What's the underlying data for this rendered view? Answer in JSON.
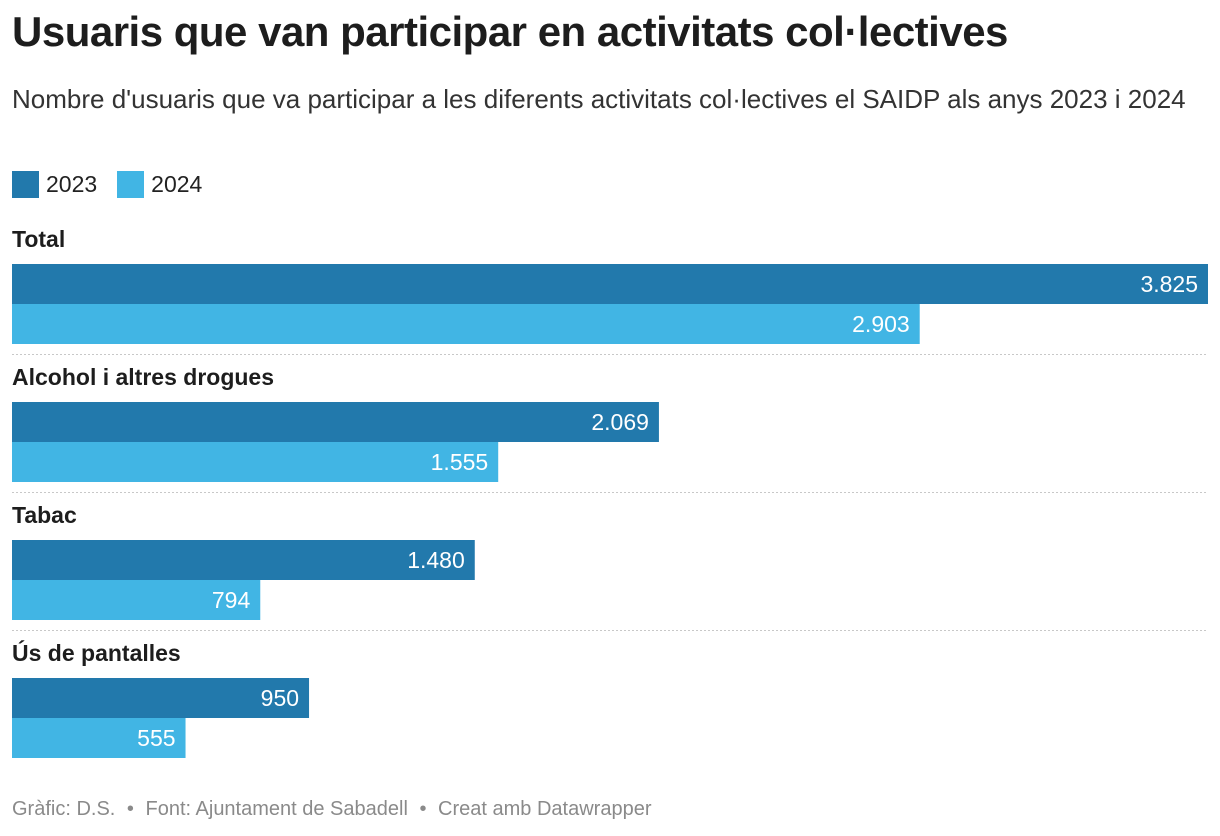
{
  "header": {
    "title": "Usuaris que van participar en activitats col·lectives",
    "subtitle": "Nombre d'usuaris que va participar a les diferents activitats col·lectives el SAIDP als anys 2023 i 2024"
  },
  "legend": {
    "items": [
      {
        "label": "2023",
        "color": "#2279ac"
      },
      {
        "label": "2024",
        "color": "#41b5e4"
      }
    ]
  },
  "chart_data": {
    "type": "bar",
    "orientation": "horizontal",
    "title": "Usuaris que van participar en activitats col·lectives",
    "categories": [
      "Total",
      "Alcohol i altres drogues",
      "Tabac",
      "Ús de pantalles"
    ],
    "series": [
      {
        "name": "2023",
        "color": "#2279ac",
        "values": [
          3825,
          2069,
          1480,
          950
        ],
        "labels": [
          "3.825",
          "2.069",
          "1.480",
          "950"
        ]
      },
      {
        "name": "2024",
        "color": "#41b5e4",
        "values": [
          2903,
          1555,
          794,
          555
        ],
        "labels": [
          "2.903",
          "1.555",
          "794",
          "555"
        ]
      }
    ],
    "xlim": [
      0,
      3825
    ],
    "grid": false,
    "legend_position": "top-left"
  },
  "footer": {
    "credit": "Gràfic: D.S.",
    "source": "Font: Ajuntament de Sabadell",
    "tool": "Creat amb Datawrapper",
    "separator": "•"
  }
}
